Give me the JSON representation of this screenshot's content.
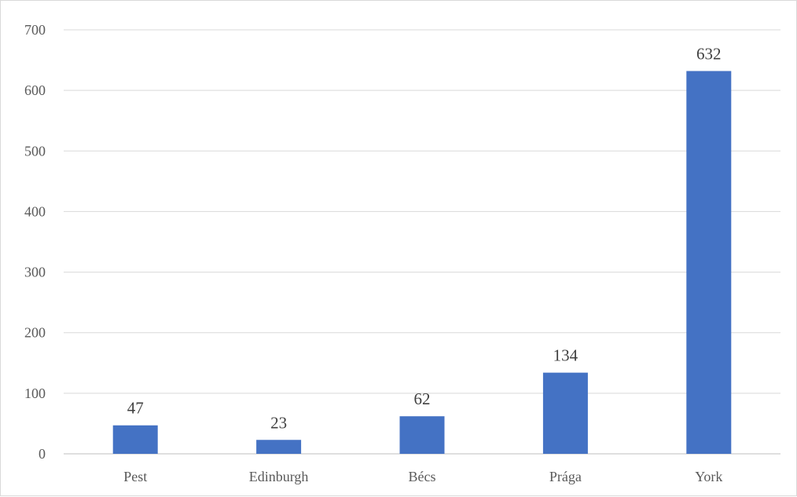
{
  "chart_data": {
    "type": "bar",
    "categories": [
      "Pest",
      "Edinburgh",
      "Bécs",
      "Prága",
      "York"
    ],
    "values": [
      47,
      23,
      62,
      134,
      632
    ],
    "data_labels": [
      "47",
      "23",
      "62",
      "134",
      "632"
    ],
    "y_ticks": [
      "0",
      "100",
      "200",
      "300",
      "400",
      "500",
      "600",
      "700"
    ],
    "ylim": [
      0,
      700
    ],
    "title": "",
    "xlabel": "",
    "ylabel": "",
    "grid": true,
    "legend": "none",
    "bar_color": "#4472c4"
  }
}
